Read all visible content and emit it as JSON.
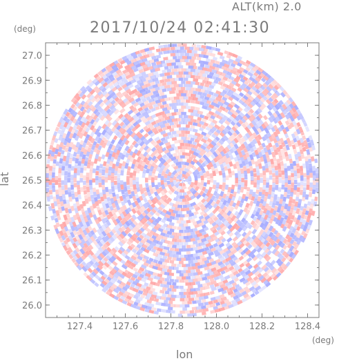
{
  "header": {
    "altitude": "ALT(km) 2.0",
    "timestamp": "2017/10/24 02:41:30"
  },
  "chart_data": {
    "type": "heatmap",
    "title": "2017/10/24 02:41:30",
    "subtitle": "ALT(km) 2.0",
    "xlabel": "lon",
    "ylabel": "lat",
    "x_unit": "(deg)",
    "y_unit": "(deg)",
    "xlim": [
      127.25,
      128.45
    ],
    "ylim": [
      25.95,
      27.05
    ],
    "x_ticks": [
      127.4,
      127.6,
      127.8,
      128.0,
      128.2,
      128.4
    ],
    "x_tick_labels": [
      "127.4",
      "127.6",
      "127.8",
      "128.0",
      "128.2",
      "128.4"
    ],
    "y_ticks": [
      26.0,
      26.1,
      26.2,
      26.3,
      26.4,
      26.5,
      26.6,
      26.7,
      26.8,
      26.9,
      27.0
    ],
    "y_tick_labels": [
      "26.0",
      "26.1",
      "26.2",
      "26.3",
      "26.4",
      "26.5",
      "26.6",
      "26.7",
      "26.8",
      "26.9",
      "27.0"
    ],
    "radar_center": [
      127.85,
      26.5
    ],
    "radar_radius_deg": 0.6,
    "colors": {
      "positive": "#ff9a9a",
      "negative": "#9aa0ff",
      "neutral": "#ffffff",
      "frame": "#7a7a7a"
    },
    "grid": false
  }
}
